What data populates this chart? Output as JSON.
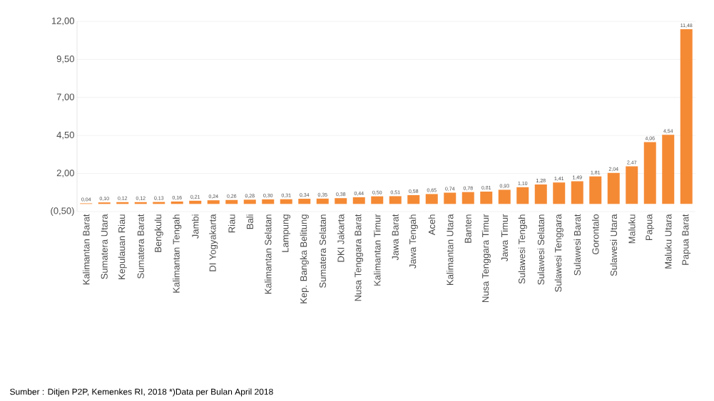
{
  "chart_data": {
    "type": "bar",
    "categories": [
      "Kalimantan Barat",
      "Sumatera Utara",
      "Kepulauan Riau",
      "Sumatera Barat",
      "Bengkulu",
      "Kalimantan Tengah",
      "Jambi",
      "DI Yogyakarta",
      "Riau",
      "Bali",
      "Kalimantan Selatan",
      "Lampung",
      "Kep. Bangka Belitung",
      "Sumatera Selatan",
      "DKI Jakarta",
      "Nusa Tenggara Barat",
      "Kalimantan Timur",
      "Jawa Barat",
      "Jawa Tengah",
      "Aceh",
      "Kalimantan Utara",
      "Banten",
      "Nusa Tenggara Timur",
      "Jawa Timur",
      "Sulawesi Tengah",
      "Sulawesi Selatan",
      "Sulawesi Tenggara",
      "Sulawesi Barat",
      "Gorontalo",
      "Sulawesi Utara",
      "Maluku",
      "Papua",
      "Maluku Utara",
      "Papua Barat"
    ],
    "values": [
      0.04,
      0.1,
      0.12,
      0.12,
      0.13,
      0.16,
      0.21,
      0.24,
      0.26,
      0.28,
      0.3,
      0.31,
      0.34,
      0.35,
      0.38,
      0.44,
      0.5,
      0.51,
      0.58,
      0.65,
      0.74,
      0.78,
      0.81,
      0.93,
      1.1,
      1.28,
      1.41,
      1.49,
      1.81,
      2.04,
      2.47,
      4.06,
      4.54,
      11.48
    ],
    "value_labels": [
      "0,04",
      "0,10",
      "0,12",
      "0,12",
      "0,13",
      "0,16",
      "0,21",
      "0,24",
      "0,26",
      "0,28",
      "0,30",
      "0,31",
      "0,34",
      "0,35",
      "0,38",
      "0,44",
      "0,50",
      "0,51",
      "0,58",
      "0,65",
      "0,74",
      "0,78",
      "0,81",
      "0,93",
      "1,10",
      "1,28",
      "1,41",
      "1,49",
      "1,81",
      "2,04",
      "2,47",
      "4,06",
      "4,54",
      "11,48"
    ],
    "color": "#f58a35",
    "ylim": [
      -0.5,
      12
    ],
    "yticks": [
      {
        "value": -0.5,
        "label": "(0,50)"
      },
      {
        "value": 2,
        "label": "2,00"
      },
      {
        "value": 4.5,
        "label": "4,50"
      },
      {
        "value": 7,
        "label": "7,00"
      },
      {
        "value": 9.5,
        "label": "9,50"
      },
      {
        "value": 12,
        "label": "12,00"
      }
    ],
    "grid": "y",
    "annotations": [
      "Sumber : Ditjen P2P, Kemenkes RI, 2018  *)Data per Bulan April 2018"
    ]
  }
}
